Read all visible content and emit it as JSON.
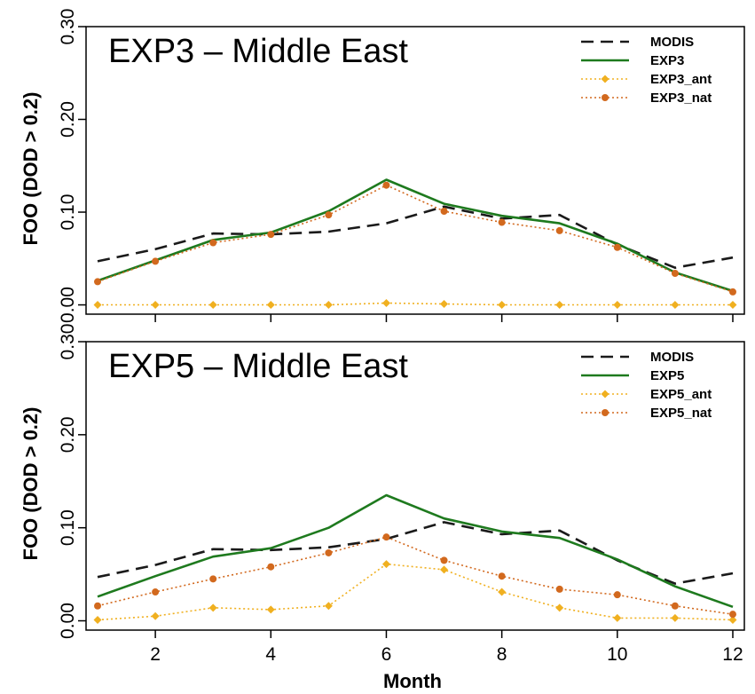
{
  "chart_data": [
    {
      "type": "line",
      "title": "EXP3 – Middle East",
      "ylabel": "FOO (DOD > 0.2)",
      "xlabel": "",
      "x": [
        1,
        2,
        3,
        4,
        5,
        6,
        7,
        8,
        9,
        10,
        11,
        12
      ],
      "xlim": [
        0.8,
        12.2
      ],
      "ylim": [
        -0.01,
        0.3
      ],
      "xticks": [
        2,
        4,
        6,
        8,
        10,
        12
      ],
      "yticks": [
        "0.00",
        "0.10",
        "0.20",
        "0.30"
      ],
      "legend_position": "top-right",
      "series": [
        {
          "name": "MODIS",
          "color": "#1a1a1a",
          "style": "dashed",
          "marker": "none",
          "values": [
            0.047,
            0.06,
            0.077,
            0.076,
            0.079,
            0.088,
            0.106,
            0.093,
            0.097,
            0.065,
            0.04,
            0.051
          ]
        },
        {
          "name": "EXP3",
          "color": "#1e7a1e",
          "style": "solid",
          "marker": "none",
          "values": [
            0.026,
            0.048,
            0.07,
            0.078,
            0.101,
            0.135,
            0.109,
            0.096,
            0.088,
            0.066,
            0.035,
            0.015
          ]
        },
        {
          "name": "EXP3_ant",
          "color": "#f0b020",
          "style": "dotted",
          "marker": "diamond",
          "values": [
            0.0,
            0.0,
            0.0,
            0.0,
            0.0,
            0.002,
            0.001,
            0.0,
            0.0,
            0.0,
            0.0,
            0.0
          ]
        },
        {
          "name": "EXP3_nat",
          "color": "#d2691e",
          "style": "dotted",
          "marker": "circle",
          "values": [
            0.025,
            0.047,
            0.067,
            0.076,
            0.097,
            0.129,
            0.101,
            0.089,
            0.08,
            0.062,
            0.034,
            0.014
          ]
        }
      ]
    },
    {
      "type": "line",
      "title": "EXP5 – Middle East",
      "ylabel": "FOO (DOD > 0.2)",
      "xlabel": "Month",
      "x": [
        1,
        2,
        3,
        4,
        5,
        6,
        7,
        8,
        9,
        10,
        11,
        12
      ],
      "xlim": [
        0.8,
        12.2
      ],
      "ylim": [
        -0.01,
        0.3
      ],
      "xticks": [
        2,
        4,
        6,
        8,
        10,
        12
      ],
      "yticks": [
        "0.00",
        "0.10",
        "0.20",
        "0.30"
      ],
      "legend_position": "top-right",
      "series": [
        {
          "name": "MODIS",
          "color": "#1a1a1a",
          "style": "dashed",
          "marker": "none",
          "values": [
            0.047,
            0.06,
            0.077,
            0.076,
            0.079,
            0.088,
            0.106,
            0.093,
            0.097,
            0.065,
            0.04,
            0.051
          ]
        },
        {
          "name": "EXP5",
          "color": "#1e7a1e",
          "style": "solid",
          "marker": "none",
          "values": [
            0.026,
            0.048,
            0.069,
            0.078,
            0.1,
            0.135,
            0.11,
            0.096,
            0.089,
            0.066,
            0.037,
            0.015
          ]
        },
        {
          "name": "EXP5_ant",
          "color": "#f0b020",
          "style": "dotted",
          "marker": "diamond",
          "values": [
            0.001,
            0.005,
            0.014,
            0.012,
            0.016,
            0.061,
            0.055,
            0.031,
            0.014,
            0.003,
            0.003,
            0.001
          ]
        },
        {
          "name": "EXP5_nat",
          "color": "#d2691e",
          "style": "dotted",
          "marker": "circle",
          "values": [
            0.016,
            0.031,
            0.045,
            0.058,
            0.073,
            0.09,
            0.065,
            0.048,
            0.034,
            0.028,
            0.016,
            0.007
          ]
        }
      ]
    }
  ]
}
